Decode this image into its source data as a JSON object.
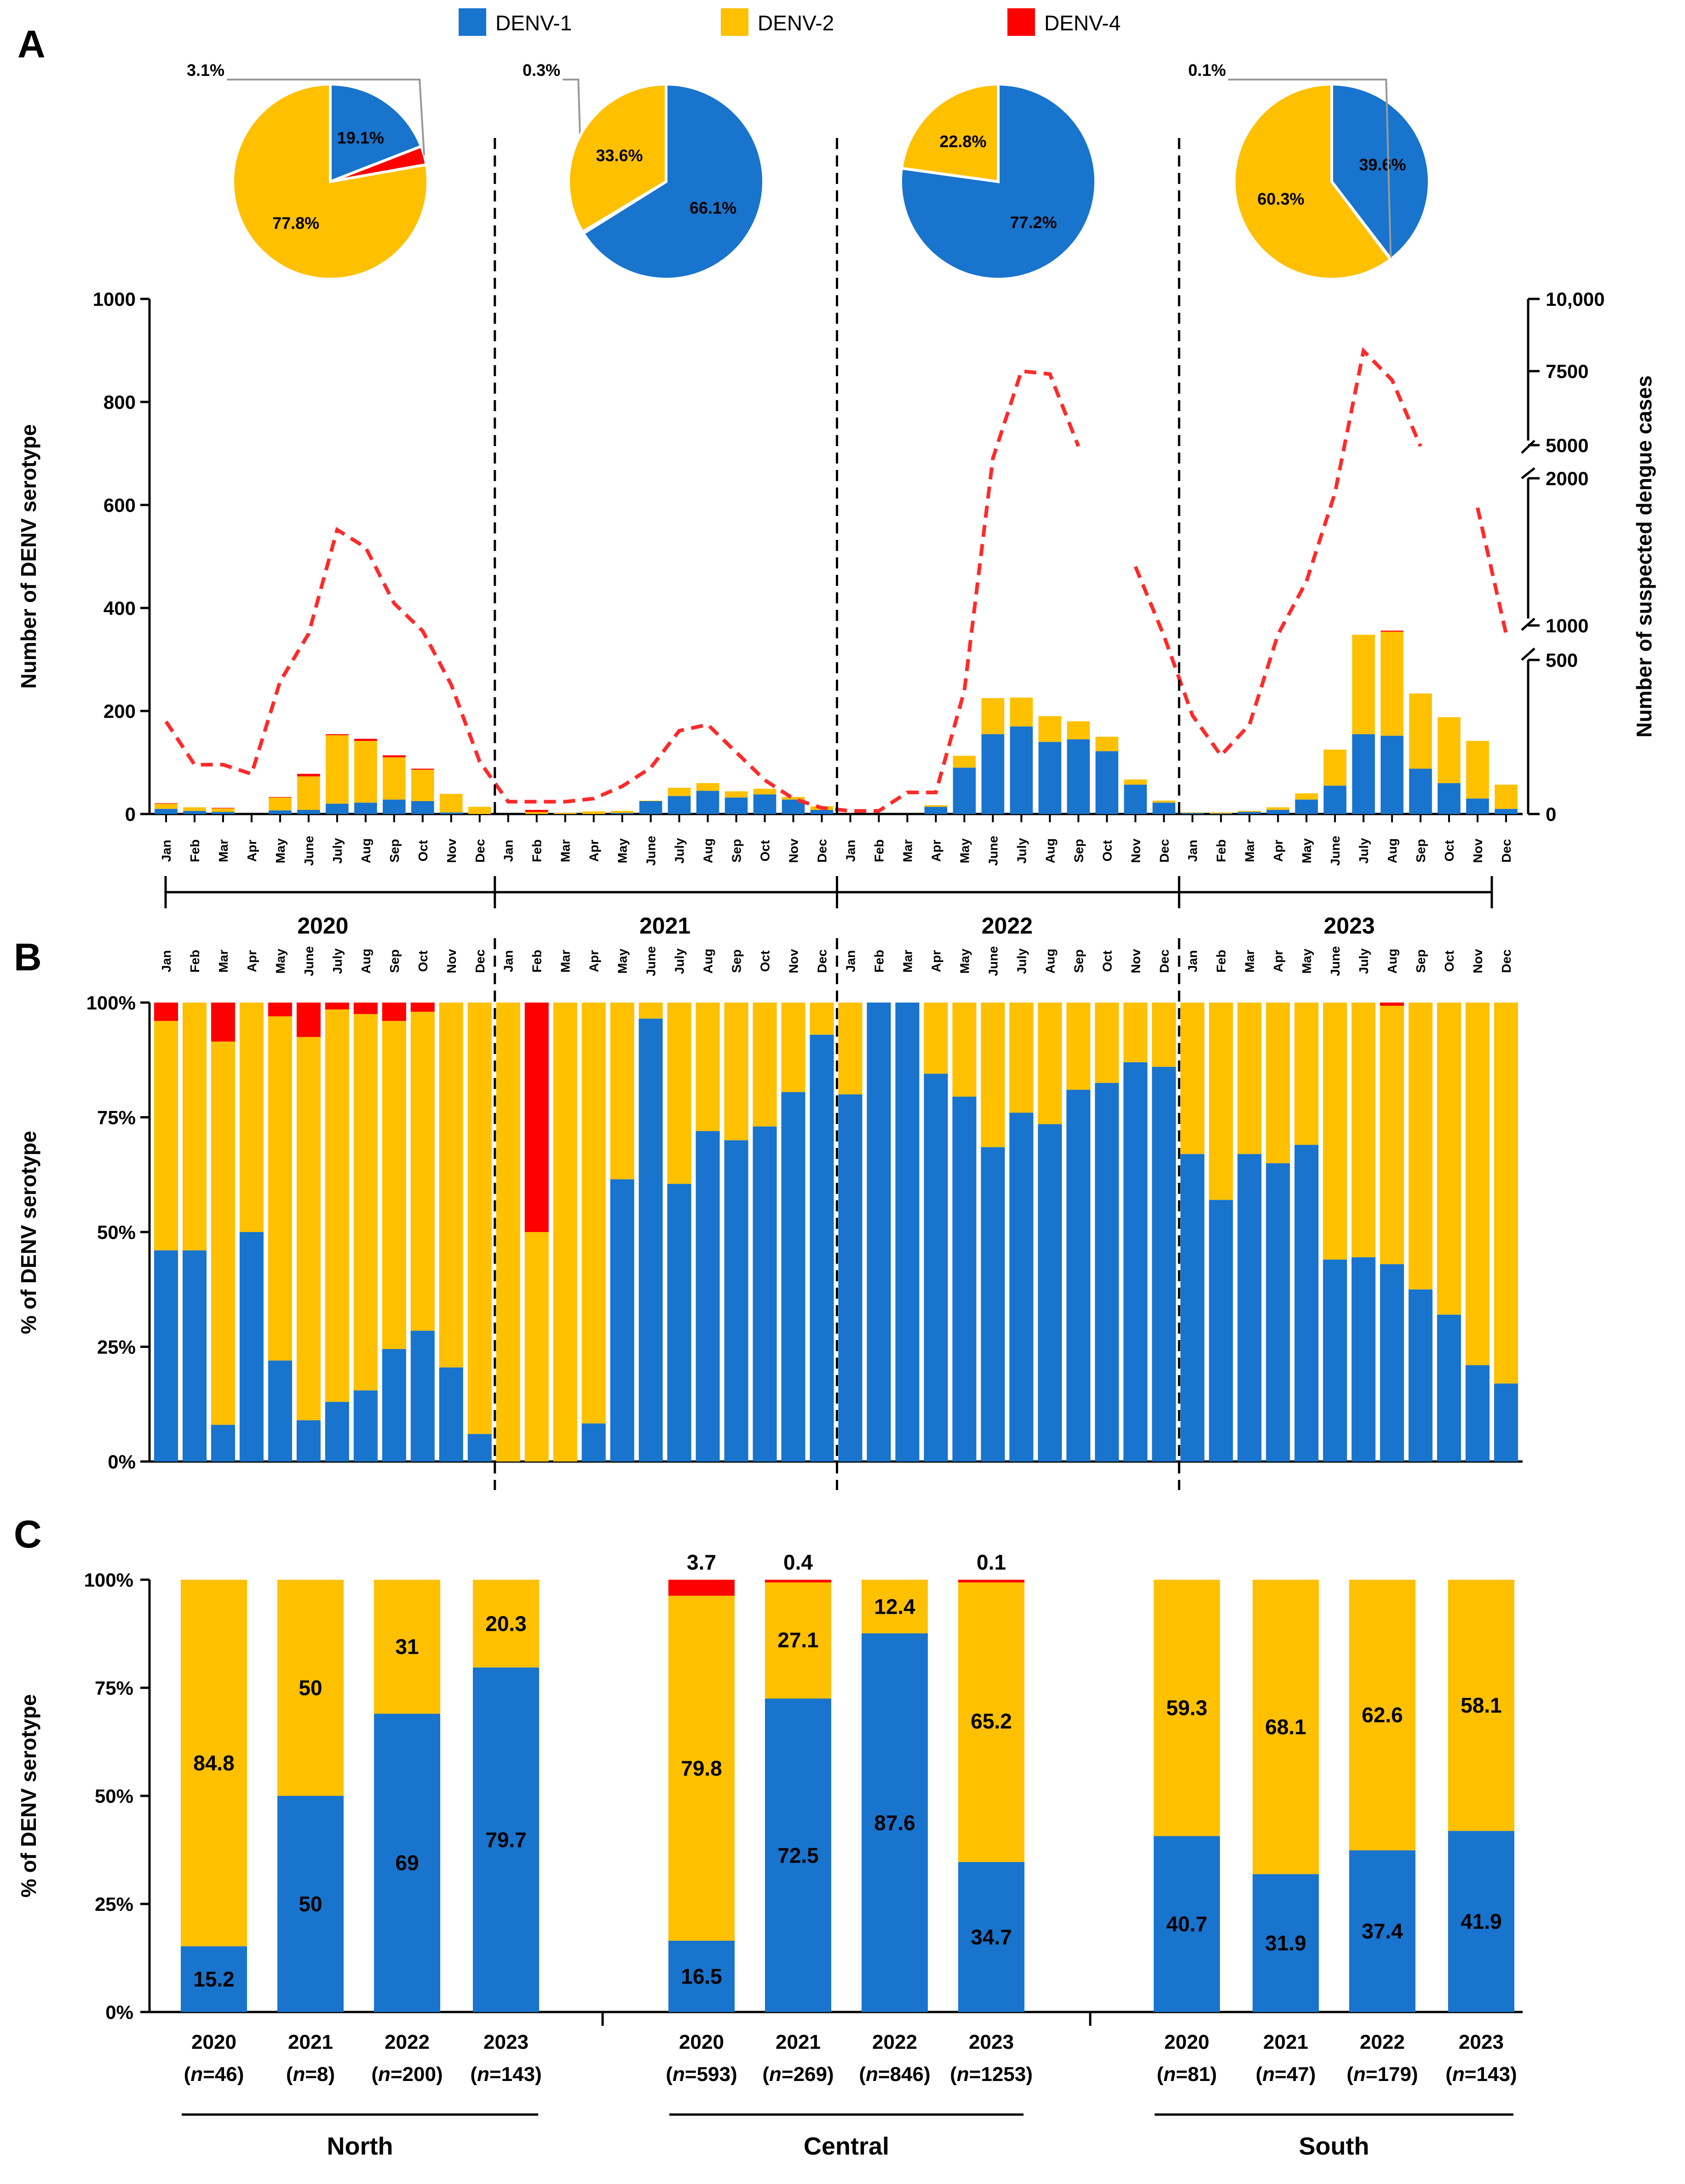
{
  "colors": {
    "denv1": "#1874CD",
    "denv2": "#FFC000",
    "denv4": "#FF0000",
    "cases_line": "#FF2A2A"
  },
  "legend": [
    "DENV-1",
    "DENV-2",
    "DENV-4"
  ],
  "panel_labels": {
    "a": "A",
    "b": "B",
    "c": "C"
  },
  "months": [
    "Jan",
    "Feb",
    "Mar",
    "Apr",
    "May",
    "June",
    "July",
    "Aug",
    "Sep",
    "Oct",
    "Nov",
    "Dec"
  ],
  "years": [
    "2020",
    "2021",
    "2022",
    "2023"
  ],
  "chart_data": [
    {
      "id": "pies",
      "type": "pie",
      "title": "Annual DENV serotype distribution",
      "pies": [
        {
          "year": "2020",
          "slices": [
            {
              "name": "DENV-1",
              "value": 19.1,
              "label": "19.1%"
            },
            {
              "name": "DENV-4",
              "value": 3.1,
              "label": "3.1%"
            },
            {
              "name": "DENV-2",
              "value": 77.8,
              "label": "77.8%"
            }
          ]
        },
        {
          "year": "2021",
          "slices": [
            {
              "name": "DENV-1",
              "value": 66.1,
              "label": "66.1%"
            },
            {
              "name": "DENV-4",
              "value": 0.3,
              "label": "0.3%"
            },
            {
              "name": "DENV-2",
              "value": 33.6,
              "label": "33.6%"
            }
          ]
        },
        {
          "year": "2022",
          "slices": [
            {
              "name": "DENV-1",
              "value": 77.2,
              "label": "77.2%"
            },
            {
              "name": "DENV-2",
              "value": 22.8,
              "label": "22.8%"
            }
          ]
        },
        {
          "year": "2023",
          "slices": [
            {
              "name": "DENV-1",
              "value": 39.6,
              "label": "39.6%"
            },
            {
              "name": "DENV-4",
              "value": 0.1,
              "label": "0.1%"
            },
            {
              "name": "DENV-2",
              "value": 60.3,
              "label": "60.3%"
            }
          ]
        }
      ]
    },
    {
      "id": "A",
      "type": "bar",
      "stacked": true,
      "ylabel": "Number of DENV serotype",
      "ylim": [
        0,
        1000
      ],
      "yticks": [
        0,
        200,
        400,
        600,
        800,
        1000
      ],
      "y2label": "Number of suspected dengue cases",
      "y2ticks": [
        "0",
        "500",
        "1000",
        "2000",
        "5000",
        "7500",
        "10,000"
      ],
      "y2_scale_note": "broken axis: 0–500, 500–1000, 1000–2000, 5000–10,000",
      "series": [
        {
          "name": "DENV-1",
          "values": [
            10,
            6,
            4,
            0,
            7,
            8,
            20,
            22,
            28,
            25,
            3,
            0,
            0,
            0,
            0,
            0,
            2,
            25,
            35,
            45,
            32,
            38,
            28,
            8,
            0,
            0,
            0,
            14,
            90,
            155,
            170,
            140,
            145,
            122,
            57,
            22,
            2,
            1,
            4,
            8,
            28,
            55,
            155,
            152,
            88,
            60,
            30,
            10
          ]
        },
        {
          "name": "DENV-2",
          "values": [
            10,
            7,
            7,
            0,
            25,
            65,
            133,
            120,
            82,
            61,
            36,
            14,
            0,
            4,
            2,
            5,
            4,
            1,
            16,
            15,
            12,
            11,
            5,
            7,
            0,
            0,
            0,
            3,
            23,
            70,
            56,
            50,
            35,
            28,
            10,
            4,
            1,
            2,
            2,
            5,
            12,
            70,
            193,
            202,
            146,
            128,
            112,
            47
          ]
        },
        {
          "name": "DENV-4",
          "values": [
            1,
            0,
            1,
            0,
            1,
            5,
            2,
            4,
            4,
            2,
            0,
            0,
            0,
            4,
            0,
            0,
            0,
            0,
            0,
            0,
            0,
            0,
            0,
            0,
            0,
            0,
            0,
            0,
            0,
            0,
            0,
            0,
            0,
            0,
            0,
            0,
            0,
            0,
            0,
            0,
            0,
            0,
            0,
            2,
            0,
            0,
            0,
            0
          ]
        }
      ],
      "cases_line": {
        "name": "Suspected dengue cases",
        "values": [
          300,
          160,
          160,
          130,
          430,
          880,
          1650,
          1530,
          1150,
          920,
          420,
          170,
          40,
          40,
          40,
          50,
          90,
          150,
          270,
          290,
          200,
          110,
          50,
          20,
          10,
          10,
          70,
          70,
          400,
          3800,
          7500,
          7400,
          4900,
          null,
          1400,
          850,
          320,
          190,
          290,
          870,
          1300,
          1900,
          8200,
          7200,
          4900,
          null,
          1800,
          880
        ],
        "segment_breaks_after_index": [
          34,
          46
        ]
      }
    },
    {
      "id": "B",
      "type": "bar",
      "stacked": true,
      "ylabel": "% of DENV serotype",
      "ylim": [
        0,
        100
      ],
      "yticks": [
        "0%",
        "25%",
        "50%",
        "75%",
        "100%"
      ],
      "series": [
        {
          "name": "DENV-1",
          "values": [
            46,
            46,
            8,
            50,
            22,
            9,
            13,
            15.5,
            24.5,
            28.5,
            20.5,
            6,
            0,
            0,
            0,
            8.3,
            61.5,
            96.5,
            60.5,
            72,
            70,
            73,
            80.5,
            93,
            80,
            100,
            100,
            84.5,
            79.5,
            68.5,
            76,
            73.5,
            81,
            82.5,
            87,
            86,
            67,
            57,
            67,
            65,
            69,
            44,
            44.5,
            43,
            37.5,
            32,
            21,
            17
          ]
        },
        {
          "name": "DENV-2",
          "values": [
            50,
            54,
            83.5,
            50,
            75,
            83.5,
            85.5,
            82,
            71.5,
            69.5,
            79.5,
            94,
            100,
            50,
            100,
            91.7,
            38.5,
            3.5,
            39.5,
            28,
            30,
            27,
            19.5,
            7,
            20,
            0,
            0,
            15.5,
            20.5,
            31.5,
            24,
            26.5,
            19,
            17.5,
            13,
            14,
            33,
            43,
            33,
            35,
            31,
            56,
            55.5,
            56.3,
            62.5,
            68,
            79,
            83
          ]
        },
        {
          "name": "DENV-4",
          "values": [
            4,
            0,
            8.5,
            0,
            3,
            7.5,
            1.5,
            2.5,
            4,
            2,
            0,
            0,
            0,
            50,
            0,
            0,
            0,
            0,
            0,
            0,
            0,
            0,
            0,
            0,
            0,
            0,
            0,
            0,
            0,
            0,
            0,
            0,
            0,
            0,
            0,
            0,
            0,
            0,
            0,
            0,
            0,
            0,
            0,
            0.7,
            0,
            0,
            0,
            0
          ]
        }
      ]
    },
    {
      "id": "C",
      "type": "bar",
      "stacked": true,
      "ylabel": "% of DENV serotype",
      "ylim": [
        0,
        100
      ],
      "yticks": [
        "0%",
        "25%",
        "50%",
        "75%",
        "100%"
      ],
      "groups": [
        {
          "region": "North",
          "bars": [
            {
              "year": "2020",
              "n": "(n=46)",
              "denv1": 15.2,
              "denv2": 84.8,
              "denv4": 0,
              "l1": "15.2",
              "l2": "84.8",
              "l4": ""
            },
            {
              "year": "2021",
              "n": "(n=8)",
              "denv1": 50,
              "denv2": 50,
              "denv4": 0,
              "l1": "50",
              "l2": "50",
              "l4": ""
            },
            {
              "year": "2022",
              "n": "(n=200)",
              "denv1": 69,
              "denv2": 31,
              "denv4": 0,
              "l1": "69",
              "l2": "31",
              "l4": ""
            },
            {
              "year": "2023",
              "n": "(n=143)",
              "denv1": 79.7,
              "denv2": 20.3,
              "denv4": 0,
              "l1": "79.7",
              "l2": "20.3",
              "l4": ""
            }
          ]
        },
        {
          "region": "Central",
          "bars": [
            {
              "year": "2020",
              "n": "(n=593)",
              "denv1": 16.5,
              "denv2": 79.8,
              "denv4": 3.7,
              "l1": "16.5",
              "l2": "79.8",
              "l4": "3.7"
            },
            {
              "year": "2021",
              "n": "(n=269)",
              "denv1": 72.5,
              "denv2": 27.1,
              "denv4": 0.4,
              "l1": "72.5",
              "l2": "27.1",
              "l4": "0.4"
            },
            {
              "year": "2022",
              "n": "(n=846)",
              "denv1": 87.6,
              "denv2": 12.4,
              "denv4": 0,
              "l1": "87.6",
              "l2": "12.4",
              "l4": ""
            },
            {
              "year": "2023",
              "n": "(n=1253)",
              "denv1": 34.7,
              "denv2": 65.2,
              "denv4": 0.1,
              "l1": "34.7",
              "l2": "65.2",
              "l4": "0.1"
            }
          ]
        },
        {
          "region": "South",
          "bars": [
            {
              "year": "2020",
              "n": "(n=81)",
              "denv1": 40.7,
              "denv2": 59.3,
              "denv4": 0,
              "l1": "40.7",
              "l2": "59.3",
              "l4": ""
            },
            {
              "year": "2021",
              "n": "(n=47)",
              "denv1": 31.9,
              "denv2": 68.1,
              "denv4": 0,
              "l1": "31.9",
              "l2": "68.1",
              "l4": ""
            },
            {
              "year": "2022",
              "n": "(n=179)",
              "denv1": 37.4,
              "denv2": 62.6,
              "denv4": 0,
              "l1": "37.4",
              "l2": "62.6",
              "l4": ""
            },
            {
              "year": "2023",
              "n": "(n=143)",
              "denv1": 41.9,
              "denv2": 58.1,
              "denv4": 0,
              "l1": "41.9",
              "l2": "58.1",
              "l4": ""
            }
          ]
        }
      ]
    }
  ]
}
